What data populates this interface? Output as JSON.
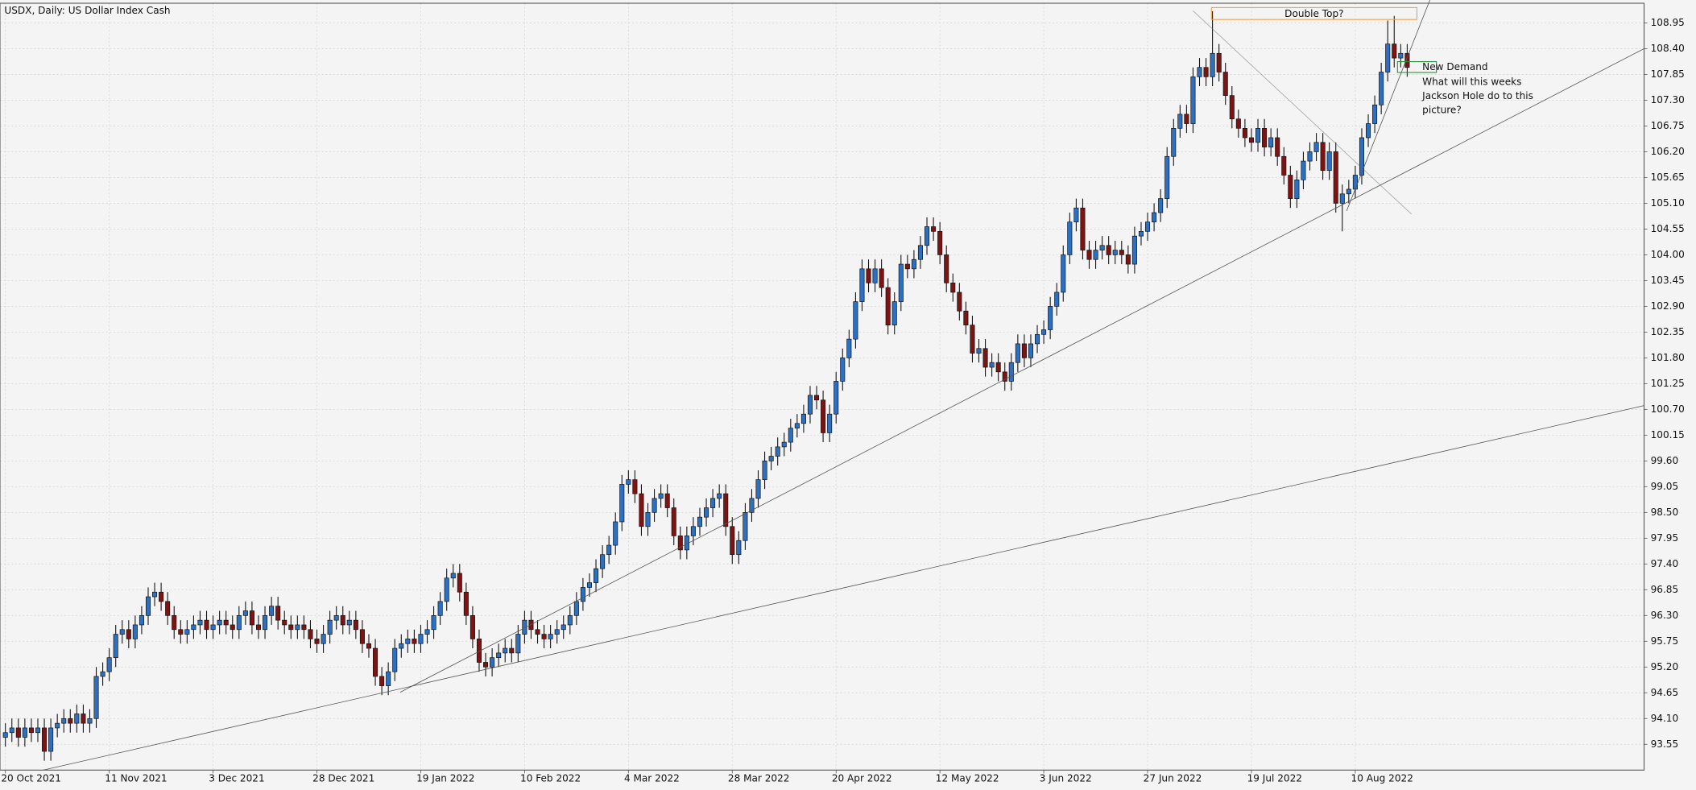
{
  "chart_data": {
    "type": "candlestick",
    "title": "USDX, Daily:  US Dollar Index Cash",
    "annotations": [
      "Double Top?",
      "New Demand",
      "What will this weeks",
      "Jackson Hole do to this",
      "picture?"
    ],
    "up_color": "#2d6fc0",
    "down_color": "#7d1414",
    "grid": true,
    "xlim": [
      -0.83,
      252.5
    ],
    "ylim": [
      93.0,
      109.37
    ],
    "xticks": [
      {
        "value": 0,
        "label": "20 Oct 2021"
      },
      {
        "value": 16,
        "label": "11 Nov 2021"
      },
      {
        "value": 32,
        "label": "3 Dec 2021"
      },
      {
        "value": 48,
        "label": "28 Dec 2021"
      },
      {
        "value": 64,
        "label": "19 Jan 2022"
      },
      {
        "value": 80,
        "label": "10 Feb 2022"
      },
      {
        "value": 96,
        "label": "4 Mar 2022"
      },
      {
        "value": 112,
        "label": "28 Mar 2022"
      },
      {
        "value": 128,
        "label": "20 Apr 2022"
      },
      {
        "value": 144,
        "label": "12 May 2022"
      },
      {
        "value": 160,
        "label": "3 Jun 2022"
      },
      {
        "value": 176,
        "label": "27 Jun 2022"
      },
      {
        "value": 192,
        "label": "19 Jul 2022"
      },
      {
        "value": 208,
        "label": "10 Aug 2022"
      }
    ],
    "yticks": [
      93.55,
      {
        "value": 94.1,
        "label": "94.10"
      },
      94.65,
      {
        "value": 95.2,
        "label": "95.20"
      },
      95.75,
      {
        "value": 96.3,
        "label": "96.30"
      },
      96.85,
      {
        "value": 97.4,
        "label": "97.40"
      },
      97.95,
      {
        "value": 98.5,
        "label": "98.50"
      },
      99.05,
      {
        "value": 99.6,
        "label": "99.60"
      },
      100.15,
      {
        "value": 100.7,
        "label": "100.70"
      },
      101.25,
      {
        "value": 101.8,
        "label": "101.80"
      },
      102.35,
      {
        "value": 102.9,
        "label": "102.90"
      },
      103.45,
      {
        "value": 104.0,
        "label": "104.00"
      },
      104.55,
      {
        "value": 105.1,
        "label": "105.10"
      },
      105.65,
      {
        "value": 106.2,
        "label": "106.20"
      },
      106.75,
      {
        "value": 107.3,
        "label": "107.30"
      },
      107.85,
      {
        "value": 108.4,
        "label": "108.40"
      },
      108.95
    ],
    "open": [
      93.7,
      93.8,
      93.9,
      93.7,
      93.9,
      93.8,
      93.9,
      93.4,
      93.9,
      94.0,
      94.1,
      94.0,
      94.2,
      94.0,
      94.1,
      95.0,
      95.1,
      95.4,
      95.9,
      96.0,
      95.8,
      96.1,
      96.3,
      96.7,
      96.8,
      96.6,
      96.3,
      96.0,
      95.9,
      96.0,
      96.1,
      96.2,
      96.0,
      96.1,
      96.2,
      96.1,
      96.0,
      96.3,
      96.4,
      96.1,
      96.0,
      96.3,
      96.5,
      96.2,
      96.1,
      96.0,
      96.1,
      96.0,
      95.8,
      95.7,
      95.9,
      96.2,
      96.3,
      96.1,
      96.2,
      96.0,
      95.7,
      95.6,
      95.0,
      94.8,
      95.1,
      95.6,
      95.7,
      95.8,
      95.7,
      95.9,
      96.0,
      96.3,
      96.6,
      97.1,
      97.2,
      96.8,
      96.3,
      95.8,
      95.3,
      95.2,
      95.4,
      95.5,
      95.6,
      95.5,
      95.9,
      96.2,
      96.0,
      95.9,
      95.8,
      95.9,
      96.0,
      96.1,
      96.3,
      96.6,
      96.9,
      97.0,
      97.3,
      97.6,
      97.8,
      98.3,
      99.1,
      99.2,
      98.9,
      98.2,
      98.5,
      98.8,
      98.9,
      98.6,
      98.0,
      97.7,
      98.0,
      98.2,
      98.4,
      98.6,
      98.8,
      98.9,
      98.2,
      97.6,
      97.9,
      98.5,
      98.8,
      99.2,
      99.6,
      99.7,
      99.9,
      100.0,
      100.3,
      100.4,
      100.6,
      101.0,
      100.9,
      100.2,
      100.6,
      101.3,
      101.8,
      102.2,
      103.0,
      103.7,
      103.4,
      103.7,
      103.3,
      102.5,
      103.0,
      103.8,
      103.7,
      103.9,
      104.2,
      104.6,
      104.5,
      104.0,
      103.4,
      103.2,
      102.8,
      102.5,
      101.9,
      102.0,
      101.6,
      101.7,
      101.5,
      101.3,
      101.7,
      102.1,
      101.8,
      102.1,
      102.3,
      102.4,
      102.9,
      103.2,
      104.0,
      104.7,
      105.0,
      104.1,
      103.9,
      104.1,
      104.2,
      104.0,
      104.1,
      104.0,
      103.8,
      104.4,
      104.5,
      104.7,
      104.9,
      105.2,
      106.1,
      106.7,
      107.0,
      106.8,
      107.8,
      108.0,
      107.8,
      108.3,
      107.9,
      107.4,
      106.9,
      106.7,
      106.5,
      106.4,
      106.7,
      106.3,
      106.5,
      106.1,
      105.7,
      105.2,
      105.6,
      106.0,
      106.2,
      106.4,
      105.8,
      106.2,
      105.1,
      105.3,
      105.4,
      105.7,
      106.5,
      106.8,
      107.2,
      107.9,
      108.5,
      108.2,
      108.3
    ],
    "high": [
      94.0,
      94.1,
      94.1,
      94.1,
      94.1,
      94.1,
      94.1,
      94.1,
      94.2,
      94.3,
      94.3,
      94.4,
      94.4,
      94.3,
      95.2,
      95.3,
      95.6,
      96.1,
      96.2,
      96.2,
      96.3,
      96.5,
      96.9,
      97.0,
      97.0,
      96.8,
      96.5,
      96.2,
      96.2,
      96.3,
      96.4,
      96.4,
      96.3,
      96.4,
      96.4,
      96.3,
      96.5,
      96.6,
      96.6,
      96.3,
      96.5,
      96.7,
      96.7,
      96.4,
      96.3,
      96.3,
      96.3,
      96.2,
      96.0,
      96.1,
      96.4,
      96.5,
      96.5,
      96.4,
      96.4,
      96.2,
      95.9,
      95.8,
      95.2,
      95.3,
      95.8,
      95.9,
      96.0,
      96.0,
      96.1,
      96.2,
      96.5,
      96.8,
      97.3,
      97.4,
      97.4,
      97.0,
      96.5,
      96.0,
      95.5,
      95.6,
      95.7,
      95.8,
      95.8,
      96.1,
      96.4,
      96.4,
      96.2,
      96.1,
      96.1,
      96.2,
      96.3,
      96.5,
      96.8,
      97.1,
      97.2,
      97.5,
      97.8,
      98.0,
      98.5,
      99.3,
      99.4,
      99.4,
      99.1,
      98.7,
      99.0,
      99.1,
      99.1,
      98.8,
      98.2,
      98.2,
      98.4,
      98.6,
      98.8,
      99.0,
      99.1,
      99.1,
      98.4,
      98.1,
      98.7,
      99.0,
      99.4,
      99.8,
      99.9,
      100.1,
      100.2,
      100.5,
      100.6,
      100.8,
      101.2,
      101.2,
      101.1,
      100.8,
      101.5,
      102.0,
      102.4,
      103.2,
      103.9,
      103.9,
      103.9,
      103.9,
      103.5,
      103.2,
      104.0,
      104.0,
      104.1,
      104.4,
      104.8,
      104.8,
      104.7,
      104.2,
      103.6,
      103.4,
      103.0,
      102.7,
      102.2,
      102.2,
      101.9,
      101.9,
      101.7,
      101.9,
      102.3,
      102.3,
      102.3,
      102.5,
      102.6,
      103.1,
      103.4,
      104.2,
      104.9,
      105.2,
      105.2,
      104.3,
      104.3,
      104.4,
      104.4,
      104.3,
      104.3,
      104.2,
      104.6,
      104.7,
      104.9,
      105.1,
      105.4,
      106.3,
      106.9,
      107.2,
      107.2,
      108.0,
      108.2,
      108.2,
      109.2,
      108.5,
      108.1,
      107.6,
      107.1,
      106.9,
      106.7,
      106.9,
      106.9,
      106.7,
      106.7,
      106.3,
      105.9,
      105.8,
      106.2,
      106.4,
      106.6,
      106.6,
      106.4,
      106.4,
      105.5,
      105.6,
      105.9,
      106.7,
      107.0,
      107.4,
      108.1,
      109.0,
      109.1,
      108.5,
      108.5
    ],
    "low": [
      93.5,
      93.6,
      93.5,
      93.5,
      93.6,
      93.6,
      93.2,
      93.2,
      93.7,
      93.8,
      93.8,
      93.8,
      93.8,
      93.8,
      93.9,
      94.8,
      94.9,
      95.2,
      95.7,
      95.6,
      95.6,
      95.9,
      96.1,
      96.5,
      96.4,
      96.1,
      95.8,
      95.7,
      95.7,
      95.8,
      95.9,
      95.8,
      95.8,
      95.9,
      95.9,
      95.8,
      95.8,
      96.1,
      95.9,
      95.8,
      95.8,
      96.1,
      96.0,
      95.9,
      95.8,
      95.8,
      95.8,
      95.6,
      95.5,
      95.5,
      95.7,
      96.0,
      95.9,
      95.9,
      95.8,
      95.5,
      95.4,
      94.8,
      94.6,
      94.6,
      94.9,
      95.4,
      95.5,
      95.5,
      95.5,
      95.7,
      95.8,
      96.1,
      96.4,
      96.9,
      96.6,
      96.1,
      95.6,
      95.1,
      95.0,
      95.0,
      95.2,
      95.3,
      95.3,
      95.3,
      95.7,
      95.8,
      95.7,
      95.6,
      95.6,
      95.7,
      95.8,
      95.9,
      96.1,
      96.4,
      96.7,
      96.8,
      97.1,
      97.4,
      97.6,
      98.1,
      98.9,
      98.7,
      98.0,
      98.0,
      98.3,
      98.6,
      98.4,
      97.8,
      97.5,
      97.5,
      97.8,
      98.0,
      98.2,
      98.4,
      98.6,
      98.0,
      97.4,
      97.4,
      97.7,
      98.3,
      98.6,
      99.0,
      99.4,
      99.5,
      99.7,
      99.8,
      100.1,
      100.2,
      100.4,
      100.7,
      100.0,
      100.0,
      100.4,
      101.1,
      101.6,
      102.0,
      102.8,
      103.2,
      103.2,
      103.1,
      102.3,
      102.3,
      102.8,
      103.5,
      103.5,
      103.7,
      104.0,
      104.3,
      103.8,
      103.2,
      103.0,
      102.6,
      102.3,
      101.7,
      101.7,
      101.4,
      101.4,
      101.3,
      101.1,
      101.1,
      101.5,
      101.6,
      101.6,
      101.9,
      102.1,
      102.2,
      102.7,
      103.0,
      103.8,
      104.5,
      103.9,
      103.7,
      103.7,
      103.9,
      103.8,
      103.8,
      103.8,
      103.6,
      103.6,
      104.2,
      104.3,
      104.5,
      104.7,
      105.0,
      105.9,
      106.5,
      106.6,
      106.6,
      107.6,
      107.6,
      107.6,
      107.7,
      107.2,
      106.7,
      106.5,
      106.3,
      106.2,
      106.2,
      106.1,
      106.1,
      105.9,
      105.5,
      105.0,
      105.0,
      105.4,
      105.8,
      106.0,
      105.6,
      105.6,
      104.9,
      104.5,
      105.1,
      105.2,
      105.5,
      106.3,
      106.6,
      107.0,
      107.7,
      108.0,
      108.0,
      107.8
    ],
    "close": [
      93.8,
      93.9,
      93.7,
      93.9,
      93.8,
      93.9,
      93.4,
      93.9,
      94.0,
      94.1,
      94.0,
      94.2,
      94.0,
      94.1,
      95.0,
      95.1,
      95.4,
      95.9,
      96.0,
      95.8,
      96.1,
      96.3,
      96.7,
      96.8,
      96.6,
      96.3,
      96.0,
      95.9,
      96.0,
      96.1,
      96.2,
      96.0,
      96.1,
      96.2,
      96.1,
      96.0,
      96.3,
      96.4,
      96.1,
      96.0,
      96.3,
      96.5,
      96.2,
      96.1,
      96.0,
      96.1,
      96.0,
      95.8,
      95.7,
      95.9,
      96.2,
      96.3,
      96.1,
      96.2,
      96.0,
      95.7,
      95.6,
      95.0,
      94.8,
      95.1,
      95.6,
      95.7,
      95.8,
      95.7,
      95.9,
      96.0,
      96.3,
      96.6,
      97.1,
      97.2,
      96.8,
      96.3,
      95.8,
      95.3,
      95.2,
      95.4,
      95.5,
      95.6,
      95.5,
      95.9,
      96.2,
      96.0,
      95.9,
      95.8,
      95.9,
      96.0,
      96.1,
      96.3,
      96.6,
      96.9,
      97.0,
      97.3,
      97.6,
      97.8,
      98.3,
      99.1,
      99.2,
      98.9,
      98.2,
      98.5,
      98.8,
      98.9,
      98.6,
      98.0,
      97.7,
      98.0,
      98.2,
      98.4,
      98.6,
      98.8,
      98.9,
      98.2,
      97.6,
      97.9,
      98.5,
      98.8,
      99.2,
      99.6,
      99.7,
      99.9,
      100.0,
      100.3,
      100.4,
      100.6,
      101.0,
      100.9,
      100.2,
      100.6,
      101.3,
      101.8,
      102.2,
      103.0,
      103.7,
      103.4,
      103.7,
      103.3,
      102.5,
      103.0,
      103.8,
      103.7,
      103.9,
      104.2,
      104.6,
      104.5,
      104.0,
      103.4,
      103.2,
      102.8,
      102.5,
      101.9,
      102.0,
      101.6,
      101.7,
      101.5,
      101.3,
      101.7,
      102.1,
      101.8,
      102.1,
      102.3,
      102.4,
      102.9,
      103.2,
      104.0,
      104.7,
      105.0,
      104.1,
      103.9,
      104.1,
      104.2,
      104.0,
      104.1,
      104.0,
      103.8,
      104.4,
      104.5,
      104.7,
      104.9,
      105.2,
      106.1,
      106.7,
      107.0,
      106.8,
      107.8,
      108.0,
      107.8,
      108.3,
      107.9,
      107.4,
      106.9,
      106.7,
      106.5,
      106.4,
      106.7,
      106.3,
      106.5,
      106.1,
      105.7,
      105.2,
      105.6,
      106.0,
      106.2,
      106.4,
      105.8,
      106.2,
      105.1,
      105.3,
      105.4,
      105.7,
      106.5,
      106.8,
      107.2,
      107.9,
      108.5,
      108.2,
      108.3,
      108.0
    ]
  }
}
